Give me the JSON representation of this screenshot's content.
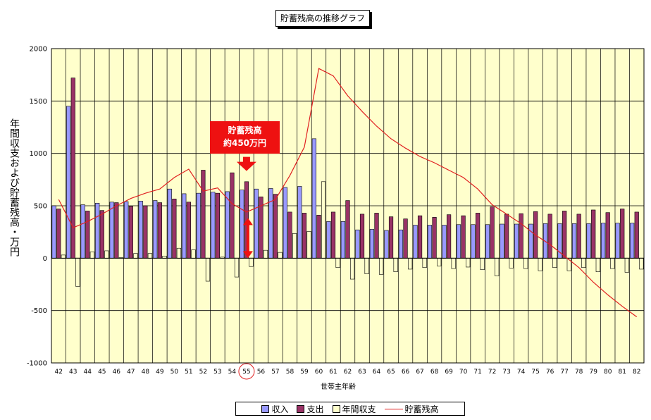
{
  "chart_data": {
    "type": "bar",
    "title": "貯蓄残高の推移グラフ",
    "ylabel": "年間収支および貯蓄残高・万円",
    "xlabel": "世帯主年齢",
    "ylim": [
      -1000,
      2000
    ],
    "yticks": [
      2000,
      1500,
      1000,
      500,
      0,
      -500,
      -1000
    ],
    "grid": true,
    "legend_position": "bottom",
    "categories": [
      "42",
      "43",
      "44",
      "45",
      "46",
      "47",
      "48",
      "49",
      "50",
      "51",
      "52",
      "53",
      "54",
      "55",
      "56",
      "57",
      "58",
      "59",
      "60",
      "61",
      "62",
      "63",
      "64",
      "65",
      "66",
      "67",
      "68",
      "69",
      "70",
      "71",
      "72",
      "73",
      "74",
      "75",
      "76",
      "77",
      "78",
      "79",
      "80",
      "81",
      "82"
    ],
    "series": [
      {
        "name": "収入",
        "kind": "bar",
        "color": "#9999ff",
        "values": [
          500,
          1450,
          510,
          525,
          535,
          540,
          545,
          550,
          660,
          615,
          620,
          630,
          635,
          650,
          660,
          665,
          675,
          685,
          1140,
          350,
          350,
          270,
          275,
          265,
          270,
          315,
          315,
          315,
          320,
          320,
          320,
          325,
          325,
          325,
          330,
          330,
          330,
          330,
          335,
          335,
          335
        ]
      },
      {
        "name": "支出",
        "kind": "bar",
        "color": "#993366",
        "values": [
          470,
          1720,
          450,
          455,
          530,
          495,
          500,
          530,
          565,
          535,
          840,
          620,
          815,
          730,
          585,
          610,
          440,
          430,
          410,
          440,
          550,
          420,
          430,
          395,
          375,
          405,
          390,
          415,
          405,
          430,
          490,
          420,
          425,
          445,
          420,
          450,
          420,
          460,
          435,
          470,
          440
        ]
      },
      {
        "name": "年間収支",
        "kind": "bar",
        "color": "#ffffcc",
        "values": [
          30,
          -270,
          60,
          70,
          5,
          45,
          45,
          20,
          95,
          80,
          -220,
          10,
          -180,
          -80,
          75,
          55,
          235,
          255,
          730,
          -90,
          -200,
          -150,
          -155,
          -130,
          -105,
          -90,
          -75,
          -100,
          -85,
          -110,
          -170,
          -95,
          -100,
          -120,
          -90,
          -120,
          -90,
          -130,
          -100,
          -135,
          -105
        ]
      },
      {
        "name": "貯蓄残高",
        "kind": "line",
        "color": "#e02020",
        "values": [
          560,
          290,
          350,
          420,
          500,
          570,
          620,
          660,
          770,
          850,
          640,
          670,
          520,
          440,
          500,
          560,
          790,
          1060,
          1810,
          1740,
          1550,
          1400,
          1260,
          1140,
          1050,
          970,
          910,
          840,
          770,
          660,
          510,
          420,
          330,
          220,
          130,
          20,
          -90,
          -230,
          -350,
          -460,
          -560
        ]
      }
    ],
    "annotations": {
      "callout_line1": "貯蓄残高",
      "callout_line2": "約450万円",
      "highlight_category": "55",
      "arrow_range": [
        0,
        450
      ]
    }
  },
  "colors": {
    "plot_background": "#ffffcc",
    "gridline": "#000000",
    "callout_background": "#ee1111",
    "highlight_circle": "#e02020",
    "arrow": "#ee1111"
  }
}
